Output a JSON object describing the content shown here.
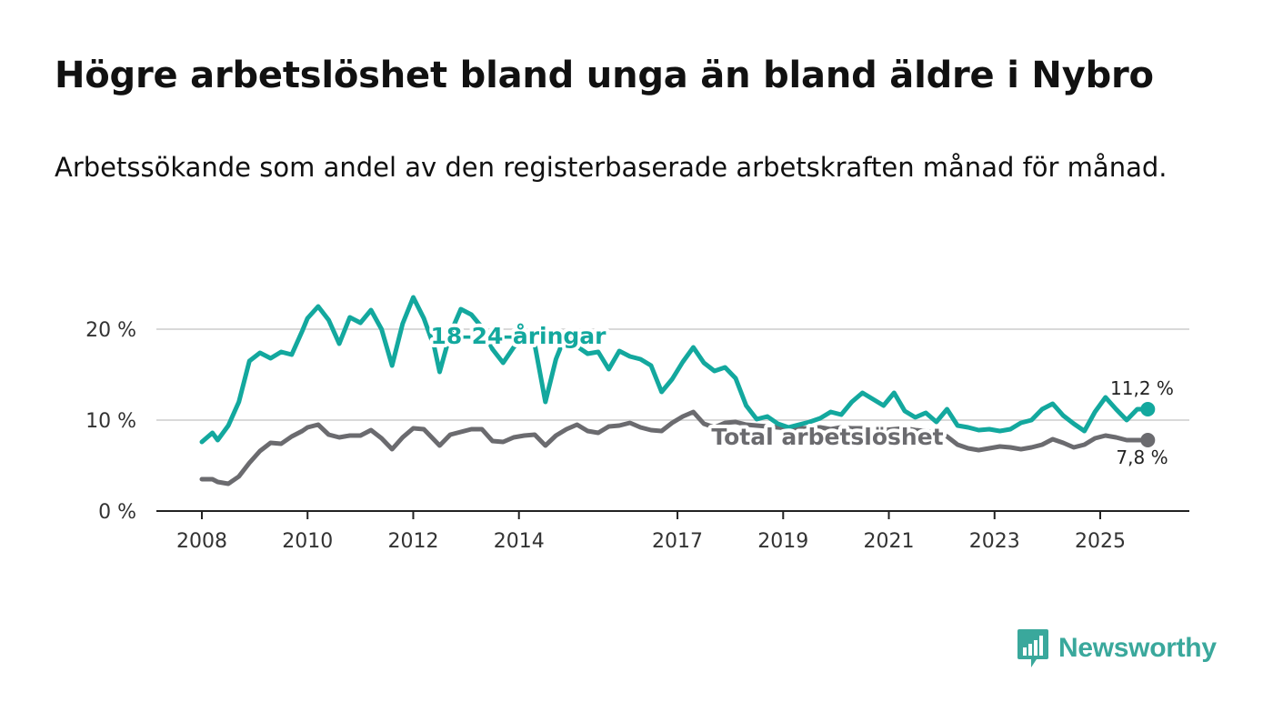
{
  "title": "Högre arbetslöshet bland unga än bland äldre i Nybro",
  "subtitle": "Arbetssökande som andel av den registerbaserade arbetskraften månad för månad.",
  "logo": {
    "text": "Newsworthy",
    "icon": "bar-chart-speech-bubble-icon",
    "color": "#3aa89c"
  },
  "chart_data": {
    "type": "line",
    "title": "Högre arbetslöshet bland unga än bland äldre i Nybro",
    "xlabel": "",
    "ylabel": "",
    "xlim": [
      2008.0,
      2026.2
    ],
    "ylim": [
      0,
      24
    ],
    "x_ticks": [
      2008,
      2010,
      2012,
      2014,
      2017,
      2019,
      2021,
      2023,
      2025
    ],
    "x_tick_labels": [
      "2008",
      "2010",
      "2012",
      "2014",
      "2017",
      "2019",
      "2021",
      "2023",
      "2025"
    ],
    "y_ticks": [
      0,
      10,
      20
    ],
    "y_tick_labels": [
      "0 %",
      "10 %",
      "20 %"
    ],
    "grid": "horizontal",
    "series": [
      {
        "name": "18-24-åringar",
        "label": "18-24-åringar",
        "color": "#13a89e",
        "end_label": "11,2 %",
        "end_value": 11.2,
        "x": [
          2008.0,
          2008.2,
          2008.3,
          2008.5,
          2008.7,
          2008.9,
          2009.1,
          2009.3,
          2009.5,
          2009.7,
          2009.9,
          2010.0,
          2010.2,
          2010.4,
          2010.6,
          2010.8,
          2011.0,
          2011.2,
          2011.4,
          2011.6,
          2011.8,
          2012.0,
          2012.2,
          2012.4,
          2012.5,
          2012.7,
          2012.9,
          2013.1,
          2013.3,
          2013.5,
          2013.7,
          2013.9,
          2014.1,
          2014.3,
          2014.5,
          2014.7,
          2014.9,
          2015.1,
          2015.3,
          2015.5,
          2015.7,
          2015.9,
          2016.1,
          2016.3,
          2016.5,
          2016.7,
          2016.9,
          2017.1,
          2017.3,
          2017.5,
          2017.7,
          2017.9,
          2018.1,
          2018.3,
          2018.5,
          2018.7,
          2018.9,
          2019.1,
          2019.3,
          2019.5,
          2019.7,
          2019.9,
          2020.1,
          2020.3,
          2020.5,
          2020.7,
          2020.9,
          2021.1,
          2021.3,
          2021.5,
          2021.7,
          2021.9,
          2022.1,
          2022.3,
          2022.5,
          2022.7,
          2022.9,
          2023.1,
          2023.3,
          2023.5,
          2023.7,
          2023.9,
          2024.1,
          2024.3,
          2024.5,
          2024.7,
          2024.9,
          2025.1,
          2025.3,
          2025.5,
          2025.7,
          2025.9
        ],
        "values": [
          7.6,
          8.6,
          7.8,
          9.4,
          12.0,
          16.5,
          17.4,
          16.8,
          17.5,
          17.2,
          19.8,
          21.2,
          22.5,
          21.0,
          18.4,
          21.3,
          20.7,
          22.1,
          20.0,
          16.0,
          20.6,
          23.5,
          21.2,
          18.0,
          15.3,
          19.5,
          22.2,
          21.6,
          20.2,
          17.8,
          16.3,
          18.0,
          19.3,
          18.3,
          12.0,
          16.7,
          19.6,
          18.1,
          17.3,
          17.5,
          15.6,
          17.6,
          17.0,
          16.7,
          16.0,
          13.1,
          14.5,
          16.4,
          18.0,
          16.3,
          15.4,
          15.8,
          14.6,
          11.6,
          10.1,
          10.4,
          9.6,
          9.2,
          9.5,
          9.8,
          10.2,
          10.9,
          10.6,
          12.0,
          13.0,
          12.3,
          11.6,
          13.0,
          11.0,
          10.3,
          10.8,
          9.8,
          11.2,
          9.4,
          9.2,
          8.9,
          9.0,
          8.8,
          9.0,
          9.7,
          10.0,
          11.2,
          11.8,
          10.5,
          9.6,
          8.8,
          10.9,
          12.5,
          11.2,
          10.0,
          11.2,
          11.2
        ]
      },
      {
        "name": "Total arbetslöshet",
        "label": "Total arbetslöshet",
        "color": "#6b6b6f",
        "end_label": "7,8 %",
        "end_value": 7.8,
        "x": [
          2008.0,
          2008.2,
          2008.3,
          2008.5,
          2008.7,
          2008.9,
          2009.1,
          2009.3,
          2009.5,
          2009.7,
          2009.9,
          2010.0,
          2010.2,
          2010.4,
          2010.6,
          2010.8,
          2011.0,
          2011.2,
          2011.4,
          2011.6,
          2011.8,
          2012.0,
          2012.2,
          2012.4,
          2012.5,
          2012.7,
          2012.9,
          2013.1,
          2013.3,
          2013.5,
          2013.7,
          2013.9,
          2014.1,
          2014.3,
          2014.5,
          2014.7,
          2014.9,
          2015.1,
          2015.3,
          2015.5,
          2015.7,
          2015.9,
          2016.1,
          2016.3,
          2016.5,
          2016.7,
          2016.9,
          2017.1,
          2017.3,
          2017.5,
          2017.7,
          2017.9,
          2018.1,
          2018.3,
          2018.5,
          2018.7,
          2018.9,
          2019.1,
          2019.3,
          2019.5,
          2019.7,
          2019.9,
          2020.1,
          2020.3,
          2020.5,
          2020.7,
          2020.9,
          2021.1,
          2021.3,
          2021.5,
          2021.7,
          2021.9,
          2022.1,
          2022.3,
          2022.5,
          2022.7,
          2022.9,
          2023.1,
          2023.3,
          2023.5,
          2023.7,
          2023.9,
          2024.1,
          2024.3,
          2024.5,
          2024.7,
          2024.9,
          2025.1,
          2025.3,
          2025.5,
          2025.7,
          2025.9
        ],
        "values": [
          3.5,
          3.5,
          3.2,
          3.0,
          3.8,
          5.3,
          6.6,
          7.5,
          7.4,
          8.2,
          8.8,
          9.2,
          9.5,
          8.4,
          8.1,
          8.3,
          8.3,
          8.9,
          8.0,
          6.8,
          8.1,
          9.1,
          9.0,
          7.8,
          7.2,
          8.4,
          8.7,
          9.0,
          9.0,
          7.7,
          7.6,
          8.1,
          8.3,
          8.4,
          7.2,
          8.3,
          9.0,
          9.5,
          8.8,
          8.6,
          9.3,
          9.4,
          9.7,
          9.2,
          8.9,
          8.8,
          9.7,
          10.4,
          10.9,
          9.6,
          9.2,
          9.7,
          9.8,
          9.5,
          9.4,
          9.3,
          9.2,
          9.1,
          9.1,
          9.1,
          9.2,
          9.0,
          9.2,
          9.1,
          9.1,
          9.0,
          8.9,
          9.0,
          9.1,
          8.9,
          8.8,
          8.6,
          8.2,
          7.3,
          6.9,
          6.7,
          6.9,
          7.1,
          7.0,
          6.8,
          7.0,
          7.3,
          7.9,
          7.5,
          7.0,
          7.3,
          8.0,
          8.3,
          8.1,
          7.8,
          7.8,
          7.8
        ]
      }
    ]
  }
}
